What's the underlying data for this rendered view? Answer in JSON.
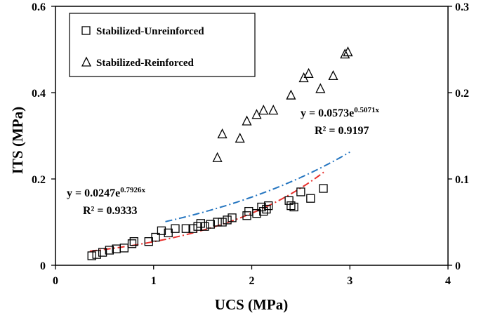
{
  "chart_data": {
    "type": "scatter",
    "xlabel": "UCS (MPa)",
    "ylabel": "ITS (MPa)",
    "xlim": [
      0,
      4
    ],
    "ylim": [
      0,
      0.6
    ],
    "y2lim": [
      0,
      0.3
    ],
    "x_ticks": [
      "0",
      "1",
      "2",
      "3",
      "4"
    ],
    "y_ticks": [
      "0",
      "0.2",
      "0.4",
      "0.6"
    ],
    "y2_ticks": [
      "0",
      "0.1",
      "0.2",
      "0.3"
    ],
    "grid": false,
    "legend_position": "top-left",
    "series": [
      {
        "name": "Stabilized-Unreinforced",
        "marker": "square",
        "x": [
          0.37,
          0.42,
          0.48,
          0.55,
          0.62,
          0.7,
          0.78,
          0.8,
          0.95,
          1.02,
          1.08,
          1.15,
          1.22,
          1.33,
          1.4,
          1.45,
          1.48,
          1.52,
          1.58,
          1.65,
          1.7,
          1.75,
          1.8,
          1.95,
          1.97,
          2.05,
          2.1,
          2.12,
          2.15,
          2.17,
          2.38,
          2.4,
          2.43,
          2.5,
          2.6,
          2.73
        ],
        "y": [
          0.022,
          0.025,
          0.03,
          0.035,
          0.038,
          0.04,
          0.05,
          0.055,
          0.055,
          0.065,
          0.08,
          0.075,
          0.085,
          0.085,
          0.085,
          0.09,
          0.097,
          0.09,
          0.095,
          0.1,
          0.1,
          0.105,
          0.11,
          0.115,
          0.125,
          0.12,
          0.135,
          0.125,
          0.13,
          0.138,
          0.15,
          0.138,
          0.135,
          0.17,
          0.155,
          0.178
        ]
      },
      {
        "name": "Stabilized-Reinforced",
        "marker": "triangle",
        "x": [
          1.65,
          1.7,
          1.88,
          1.95,
          2.05,
          2.12,
          2.22,
          2.4,
          2.53,
          2.58,
          2.7,
          2.83,
          2.95,
          2.98
        ],
        "y": [
          0.25,
          0.305,
          0.295,
          0.335,
          0.35,
          0.36,
          0.36,
          0.395,
          0.435,
          0.445,
          0.41,
          0.44,
          0.49,
          0.495
        ]
      }
    ],
    "trendlines": [
      {
        "series": "Stabilized-Unreinforced",
        "a": 0.0247,
        "b": 0.7926,
        "x_range": [
          0.35,
          2.75
        ],
        "color": "#e8302c",
        "style": "dash-dot",
        "equation": "y = 0.0247e",
        "exponent": "0.7926x",
        "r2": "R² = 0.9333"
      },
      {
        "series": "Stabilized-Reinforced",
        "a": 0.0573,
        "b": 0.5071,
        "x_range": [
          1.12,
          3.0
        ],
        "color": "#2475c0",
        "style": "dash-dot",
        "equation": "y = 0.0573e",
        "exponent": "0.5071x",
        "r2": "R² = 0.9197"
      }
    ]
  }
}
